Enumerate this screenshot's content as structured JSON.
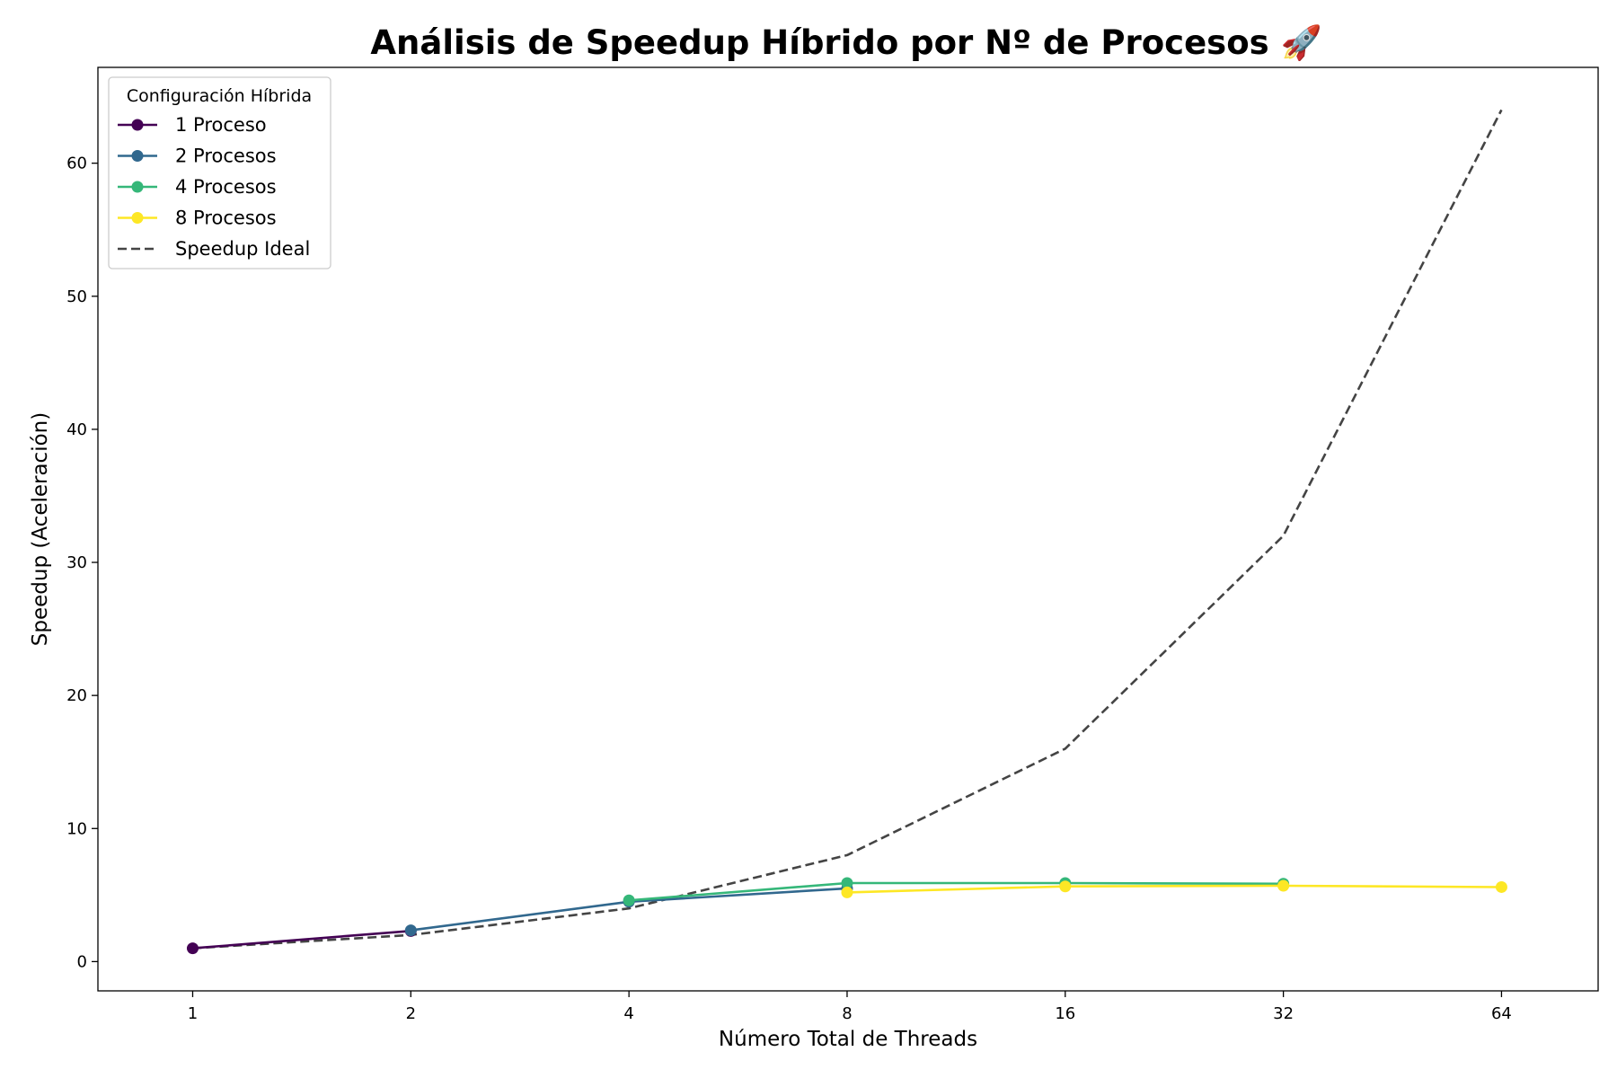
{
  "chart_data": {
    "type": "line",
    "title": "Análisis de Speedup Híbrido por Nº de Procesos 🚀",
    "xlabel": "Número Total de Threads",
    "ylabel": "Speedup (Aceleración)",
    "x_scale": "log2",
    "x_ticks": [
      1,
      2,
      4,
      8,
      16,
      32,
      64
    ],
    "x_tick_labels": [
      "1",
      "2",
      "4",
      "8",
      "16",
      "32",
      "64"
    ],
    "y_ticks": [
      0,
      10,
      20,
      30,
      40,
      50,
      60
    ],
    "y_tick_labels": [
      "0",
      "10",
      "20",
      "30",
      "40",
      "50",
      "60"
    ],
    "xlim": [
      0.74,
      87
    ],
    "ylim": [
      -2.2,
      67.2
    ],
    "grid": false,
    "legend": {
      "title": "Configuración Híbrida",
      "placement": "top-left"
    },
    "series": [
      {
        "name": "1 Proceso",
        "color": "#440154",
        "style": "solid-marker",
        "x": [
          1,
          2
        ],
        "y": [
          1.0,
          2.3
        ]
      },
      {
        "name": "2 Procesos",
        "color": "#31688e",
        "style": "solid-marker",
        "x": [
          2,
          4,
          8
        ],
        "y": [
          2.35,
          4.5,
          5.5
        ]
      },
      {
        "name": "4 Procesos",
        "color": "#35b779",
        "style": "solid-marker",
        "x": [
          4,
          8,
          16,
          32
        ],
        "y": [
          4.6,
          5.9,
          5.9,
          5.85
        ]
      },
      {
        "name": "8 Procesos",
        "color": "#fde725",
        "style": "solid-marker",
        "x": [
          8,
          16,
          32,
          64
        ],
        "y": [
          5.2,
          5.65,
          5.7,
          5.6
        ]
      },
      {
        "name": "Speedup Ideal",
        "color": "#444444",
        "style": "dashed",
        "x": [
          1,
          2,
          4,
          8,
          16,
          32,
          64
        ],
        "y": [
          1,
          2,
          4,
          8,
          16,
          32,
          64
        ]
      }
    ]
  }
}
